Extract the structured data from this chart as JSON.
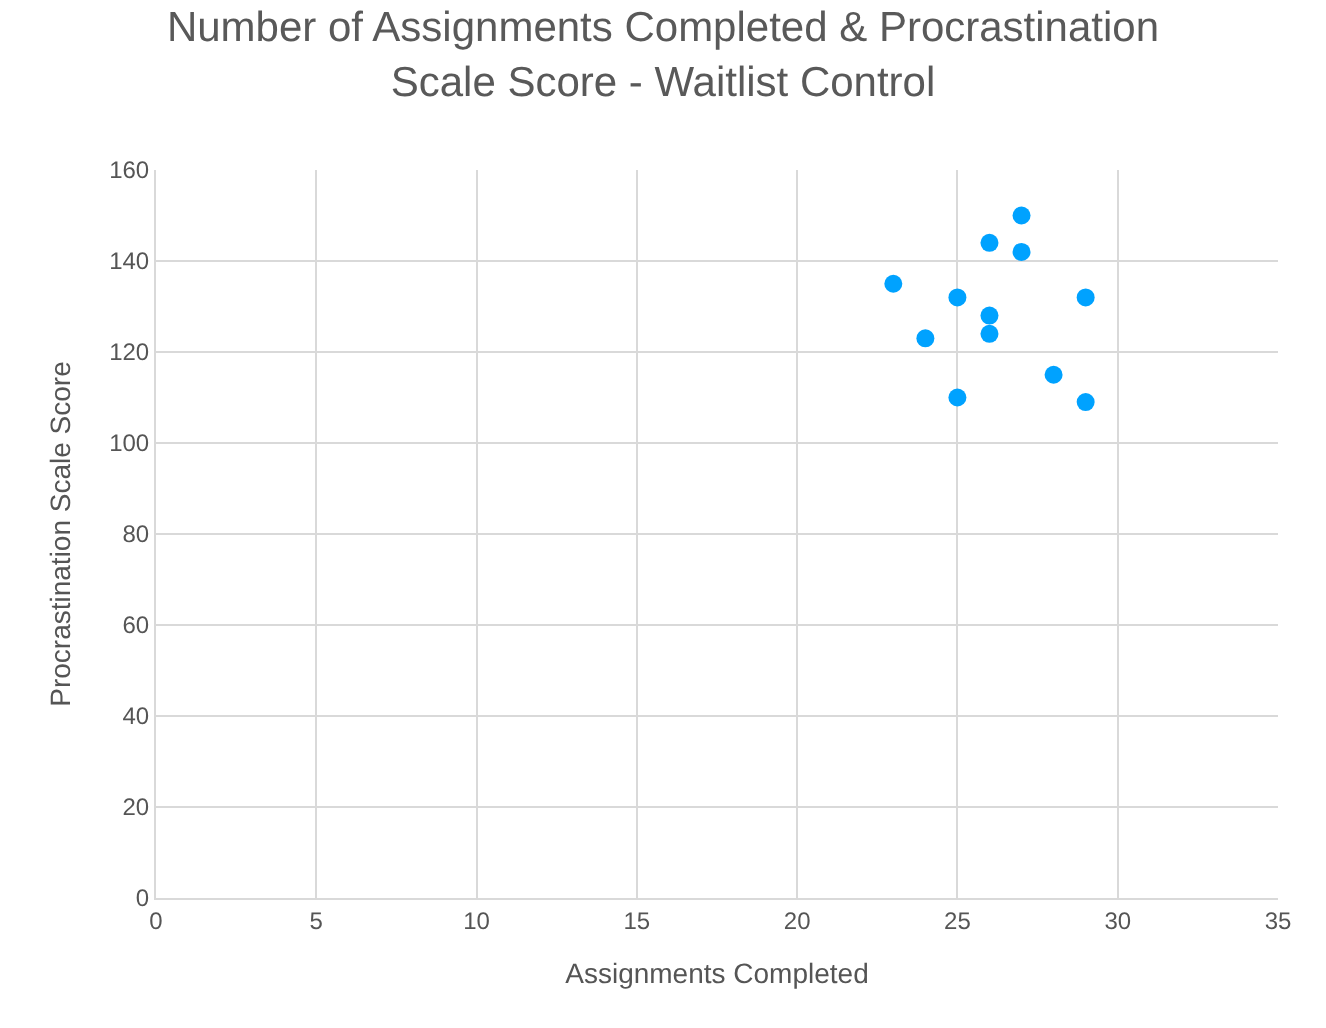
{
  "chart_data": {
    "type": "scatter",
    "title": "Number of Assignments Completed & Procrastination\nScale Score - Waitlist Control",
    "xlabel": "Assignments Completed",
    "ylabel": "Procrastination Scale Score",
    "x": [
      27,
      26,
      27,
      23,
      25,
      29,
      26,
      26,
      24,
      28,
      25,
      29
    ],
    "values": [
      150,
      144,
      142,
      135,
      132,
      132,
      128,
      124,
      123,
      115,
      110,
      109
    ],
    "color": "#00a2ff",
    "marker": "circle",
    "grid": true,
    "xlim": [
      0,
      35
    ],
    "xticks": [
      0,
      5,
      10,
      15,
      20,
      25,
      30,
      35
    ],
    "ylim": [
      0,
      160
    ],
    "yticks": [
      0,
      20,
      40,
      60,
      80,
      100,
      120,
      140,
      160
    ]
  }
}
